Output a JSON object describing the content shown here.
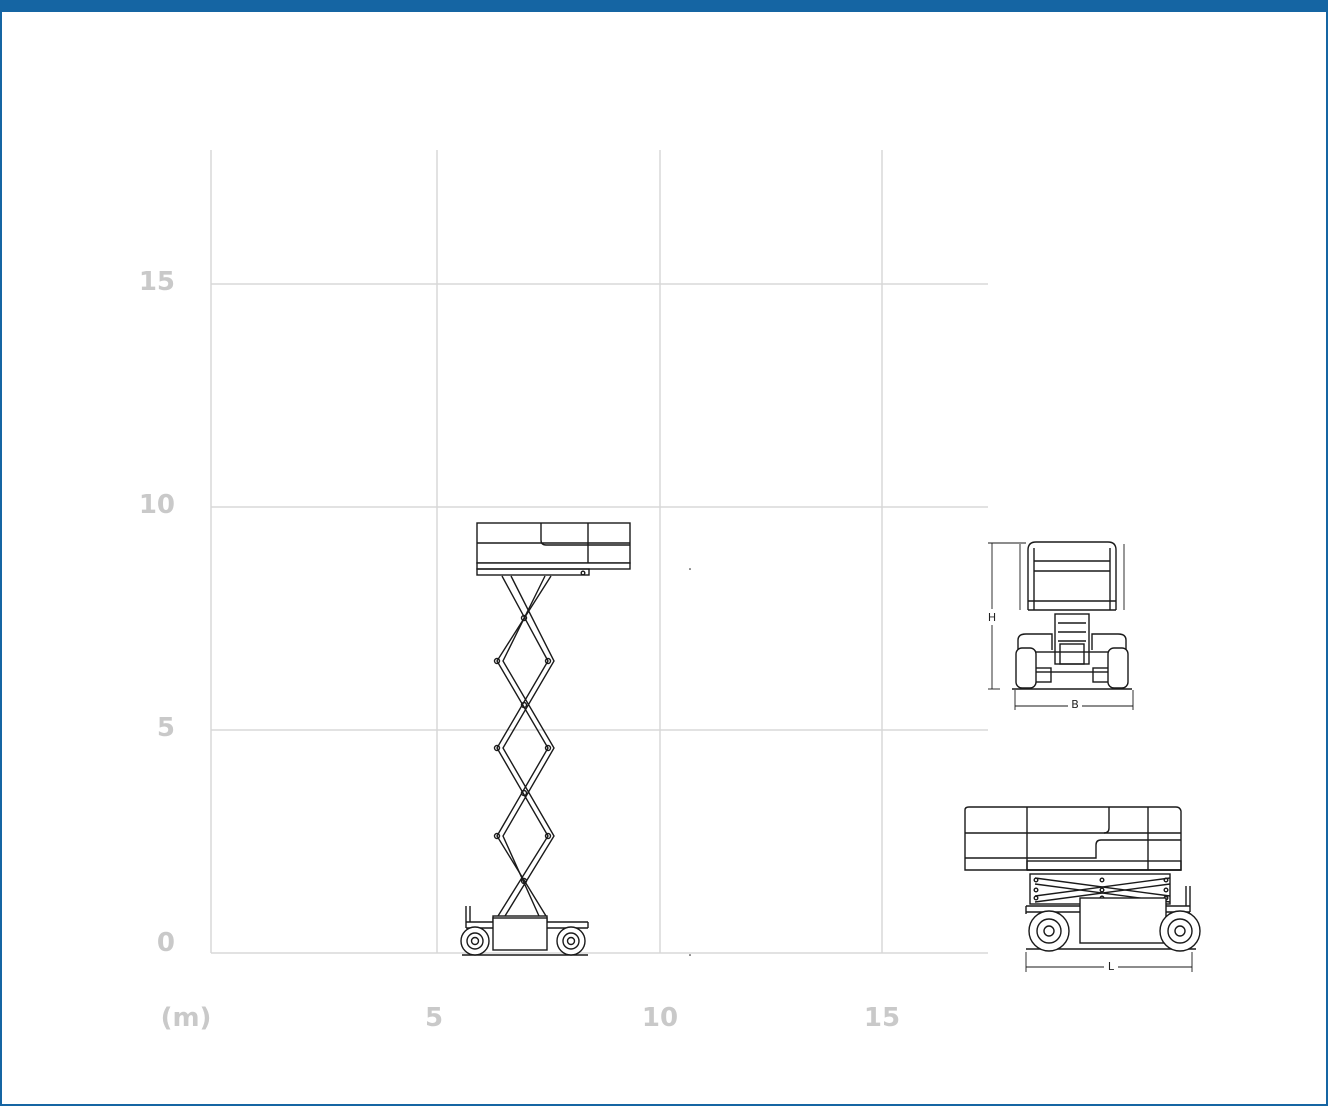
{
  "colors": {
    "frame": "#1565a3",
    "grid": "#d8d8d8",
    "tick_label": "#c9c9c9",
    "drawing": "#1a1a1a"
  },
  "axes": {
    "y_ticks": [
      {
        "value": 0,
        "label": "0"
      },
      {
        "value": 5,
        "label": "5"
      },
      {
        "value": 10,
        "label": "10"
      },
      {
        "value": 15,
        "label": "15"
      }
    ],
    "x_ticks": [
      {
        "value": 5,
        "label": "5"
      },
      {
        "value": 10,
        "label": "10"
      },
      {
        "value": 15,
        "label": "15"
      }
    ],
    "unit_label": "(m)"
  },
  "working_envelope": {
    "platform_height_m": 9.4
  },
  "front_view": {
    "height_label": "H",
    "width_label": "B"
  },
  "side_view": {
    "length_label": "L"
  }
}
